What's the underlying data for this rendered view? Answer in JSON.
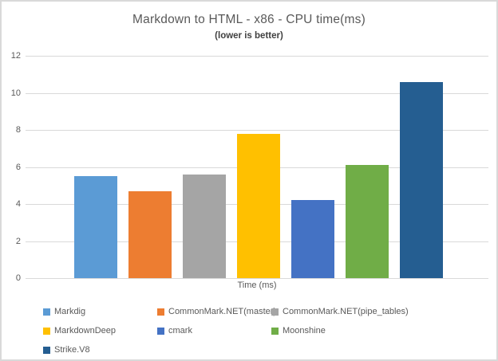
{
  "chart_data": {
    "type": "bar",
    "title": "Markdown to HTML - x86 - CPU time(ms)",
    "subtitle": "(lower is better)",
    "xlabel": "Time (ms)",
    "ylabel": "",
    "ylim": [
      0,
      12
    ],
    "y_ticks": [
      0,
      2,
      4,
      6,
      8,
      10,
      12
    ],
    "grid": true,
    "legend_position": "bottom",
    "colors": {
      "gridline": "#d9d9d9",
      "axis_text": "#595959",
      "title_text": "#595959",
      "subtitle_text": "#404040"
    },
    "series": [
      {
        "name": "Markdig",
        "value": 5.5,
        "color": "#5B9BD5"
      },
      {
        "name": "CommonMark.NET(master)",
        "value": 4.7,
        "color": "#ED7D31"
      },
      {
        "name": "CommonMark.NET(pipe_tables)",
        "value": 5.6,
        "color": "#A5A5A5"
      },
      {
        "name": "MarkdownDeep",
        "value": 7.8,
        "color": "#FFC000"
      },
      {
        "name": "cmark",
        "value": 4.2,
        "color": "#4472C4"
      },
      {
        "name": "Moonshine",
        "value": 6.1,
        "color": "#70AD47"
      },
      {
        "name": "Strike.V8",
        "value": 10.6,
        "color": "#255E91"
      }
    ]
  }
}
